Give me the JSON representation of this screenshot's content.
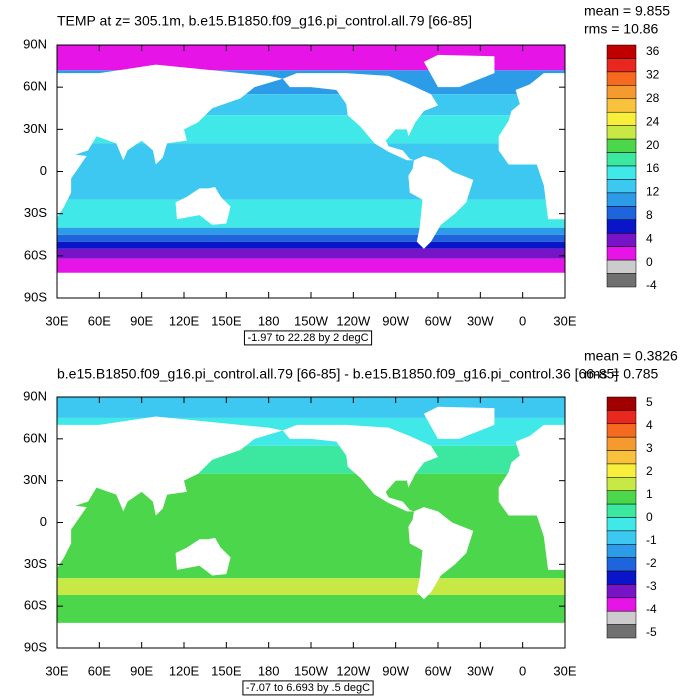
{
  "panels": [
    {
      "title": "TEMP at z= 305.1m, b.e15.B1850.f09_g16.pi_control.all.79 [66-85]",
      "stats": [
        "mean = 9.855",
        "rms = 10.86"
      ],
      "lat_labels": [
        "90N",
        "60N",
        "30N",
        "0",
        "30S",
        "60S",
        "90S"
      ],
      "lon_labels": [
        "30E",
        "60E",
        "90E",
        "120E",
        "150E",
        "180",
        "150W",
        "120W",
        "90W",
        "60W",
        "30W",
        "0",
        "30E"
      ],
      "contour_info": "-1.97 to 22.28 by 2 degC",
      "colorbar": {
        "labels": [
          36,
          32,
          28,
          24,
          20,
          16,
          12,
          8,
          4,
          0,
          -4
        ],
        "colors": [
          "#c00000",
          "#e8281e",
          "#f56a1e",
          "#f59a2e",
          "#f8c23c",
          "#f8ef3c",
          "#c8e846",
          "#4cd64c",
          "#3ce8a0",
          "#40e8e8",
          "#3cc8f0",
          "#2c9ce8",
          "#1e64dc",
          "#0a14c8",
          "#7814c8",
          "#e614e6",
          "#cccccc",
          "#707070"
        ]
      }
    },
    {
      "title": "b.e15.B1850.f09_g16.pi_control.all.79 [66-85] - b.e15.B1850.f09_g16.pi_control.36 [66-85]",
      "stats": [
        "mean = 0.3826",
        "rms = 0.785"
      ],
      "lat_labels": [
        "90N",
        "60N",
        "30N",
        "0",
        "30S",
        "60S",
        "90S"
      ],
      "lon_labels": [
        "30E",
        "60E",
        "90E",
        "120E",
        "150E",
        "180",
        "150W",
        "120W",
        "90W",
        "60W",
        "30W",
        "0",
        "30E"
      ],
      "contour_info": "-7.07 to 6.693 by .5 degC",
      "colorbar": {
        "labels": [
          5,
          4,
          3,
          2,
          1,
          0,
          -1,
          -2,
          -3,
          -4,
          -5
        ],
        "colors": [
          "#a00000",
          "#e8281e",
          "#f56a1e",
          "#f59a2e",
          "#f8c23c",
          "#f8ef3c",
          "#c8e846",
          "#4cd64c",
          "#3ce8a0",
          "#40e8e8",
          "#3cc8f0",
          "#2c9ce8",
          "#1e64dc",
          "#0a14c8",
          "#7814c8",
          "#e614e6",
          "#cccccc",
          "#707070"
        ]
      }
    }
  ]
}
